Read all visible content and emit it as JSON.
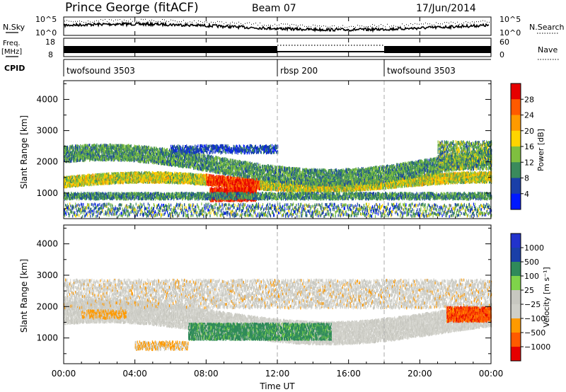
{
  "header": {
    "station": "Prince George (fitACF)",
    "beam": "Beam 07",
    "date": "17/Jun/2014"
  },
  "side_labels": {
    "nsky": "N.Sky",
    "freq": "Freq.",
    "freq_unit": "[MHz]",
    "cpid": "CPID",
    "nsearch": "N.Search",
    "nave": "Nave"
  },
  "colors": {
    "power_scale": [
      "#0019ff",
      "#1a3fa8",
      "#3a8a5c",
      "#7fbf3f",
      "#ffd400",
      "#ff9a00",
      "#ff5a00",
      "#e60000"
    ],
    "velocity_scale": [
      "#e60000",
      "#ff5a00",
      "#ff9a00",
      "#cfcfc8",
      "#c7c7c0",
      "#7fd34a",
      "#2f8a5a",
      "#1a3fa8",
      "#2233cc"
    ]
  },
  "chart_data": [
    {
      "type": "line",
      "title": "",
      "x": [
        "00:00",
        "04:00",
        "08:00",
        "12:00",
        "16:00",
        "20:00",
        "00:00"
      ],
      "ylabel_left": "N.Sky",
      "ylabel_right": "N.Search",
      "left_ticks": [
        "10^5",
        "10^0"
      ],
      "right_ticks": [
        "10^5",
        "10^0"
      ]
    },
    {
      "type": "line",
      "ylabel_left": "Freq. [MHz]",
      "ylabel_right": "Nave",
      "left_ticks": [
        "18",
        "8"
      ],
      "right_ticks": [
        "60",
        "0"
      ]
    },
    {
      "type": "table",
      "label": "CPID",
      "segments": [
        {
          "name": "twofsound 3503",
          "start": "00:00"
        },
        {
          "name": "rbsp 200",
          "start": "12:00"
        },
        {
          "name": "twofsound 3503",
          "start": "18:00"
        }
      ]
    },
    {
      "type": "heatmap",
      "ylabel": "Slant Range [km]",
      "ylim": [
        180,
        4600
      ],
      "yticks": [
        1000,
        2000,
        3000,
        4000
      ],
      "colorbar_label": "Power [dB]",
      "colorbar_ticks": [
        "28",
        "24",
        "20",
        "16",
        "12",
        "8",
        "4"
      ],
      "colorbar_range": [
        0,
        30
      ]
    },
    {
      "type": "heatmap",
      "ylabel": "Slant Range [km]",
      "ylim": [
        180,
        4600
      ],
      "yticks": [
        1000,
        2000,
        3000,
        4000
      ],
      "colorbar_label": "Velocity [m s⁻¹]",
      "colorbar_ticks": [
        "1000",
        "500",
        "100",
        "25",
        "−25",
        "−100",
        "−500",
        "−1000"
      ],
      "xlabel": "Time UT",
      "xticks": [
        "00:00",
        "04:00",
        "08:00",
        "12:00",
        "16:00",
        "20:00",
        "00:00"
      ],
      "xlim_hours": [
        0,
        24
      ]
    }
  ]
}
